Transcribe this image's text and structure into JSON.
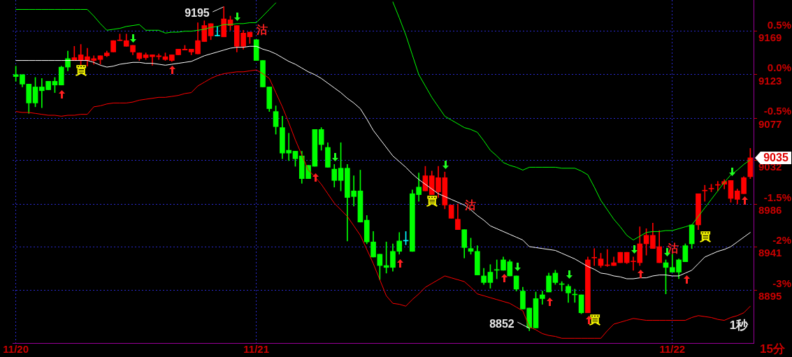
{
  "chart_data": {
    "type": "candlestick",
    "grid": true,
    "legend": false,
    "categories": [
      "11/20",
      null,
      null,
      null,
      null,
      null,
      null,
      null,
      null,
      null,
      null,
      null,
      null,
      null,
      null,
      null,
      null,
      null,
      null,
      null,
      null,
      null,
      null,
      null,
      null,
      null,
      null,
      null,
      null,
      null,
      null,
      null,
      null,
      null,
      null,
      null,
      null,
      "11/21",
      null,
      null,
      null,
      null,
      null,
      null,
      null,
      null,
      null,
      null,
      null,
      null,
      null,
      null,
      null,
      null,
      null,
      null,
      null,
      null,
      null,
      null,
      null,
      null,
      null,
      null,
      null,
      null,
      null,
      null,
      null,
      null,
      null,
      null,
      null,
      null,
      null,
      null,
      null,
      null,
      null,
      null,
      null,
      null,
      null,
      null,
      null,
      null,
      null,
      null,
      null,
      null,
      null,
      null,
      null,
      null,
      null,
      null,
      null,
      null,
      null,
      null,
      null,
      "11/22",
      null,
      null,
      null,
      null,
      null,
      null,
      null,
      null,
      null,
      null,
      null,
      null
    ],
    "ylim": [
      8839,
      9202
    ],
    "yticks": [
      8895,
      8941,
      8986,
      9032,
      9077,
      9123,
      9169
    ],
    "y2lim": [
      -3.11,
      0.87
    ],
    "y2ticks": [
      {
        "value": -2.5,
        "label": "-3%"
      },
      {
        "value": -2,
        "label": "-2%"
      },
      {
        "value": -1.5,
        "label": "-1.5%"
      },
      {
        "value": -0.5,
        "label": "-0.5%"
      },
      {
        "value": 0,
        "label": "0.0%"
      },
      {
        "value": 0.5,
        "label": "0.5%"
      }
    ],
    "annotations": [
      "9195",
      "8852",
      "買",
      "沽",
      "買",
      "沽",
      "買",
      "沽",
      "買",
      "1秒",
      "15分",
      "9035"
    ],
    "series": [
      {
        "type": "line",
        "color": "#00ff00",
        "values": [
          9192,
          9192,
          9192,
          9192,
          9192,
          9192,
          9192,
          9192,
          9192,
          9192,
          9192,
          9192,
          9185,
          9177,
          9170,
          9171,
          9172,
          9174,
          9175,
          9176,
          9170,
          9170,
          9170,
          9167,
          9168,
          9168,
          9169,
          9169,
          9170,
          9171,
          9173,
          9174,
          9176,
          9176,
          9177,
          9177,
          9178,
          9178,
          9185,
          9192,
          9199,
          null,
          null,
          null,
          null,
          null,
          null,
          null,
          null,
          null,
          null,
          null,
          null,
          null,
          null,
          null,
          null,
          null,
          9200,
          9183,
          9165,
          9144,
          9123,
          9111,
          9099,
          9089,
          9079,
          9075,
          9071,
          9067,
          9065,
          9062,
          9053,
          9043,
          9037,
          9030,
          9027,
          9025,
          9022,
          9025,
          9025,
          9025,
          9025,
          9025,
          9024,
          9024,
          9024,
          9021,
          9017,
          9004,
          8990,
          8980,
          8970,
          8962,
          8953,
          8948,
          8952,
          8956,
          8957,
          8957,
          8958,
          8958,
          8960,
          8962,
          8964,
          8973,
          8982,
          8991,
          9000,
          9009,
          9017,
          9022,
          9028,
          9033
        ]
      },
      {
        "type": "line",
        "color": "#ffffff",
        "values": [
          9138,
          9138,
          9138,
          9138,
          9138,
          9138,
          9138,
          9138,
          9138,
          9138,
          9138,
          9138,
          9136,
          9133,
          9131,
          9132,
          9134,
          9135,
          9136,
          9136,
          9135,
          9135,
          9134,
          9133,
          9134,
          9135,
          9136,
          9137,
          9140,
          9143,
          9145,
          9147,
          9149,
          9151,
          9152,
          9152,
          9153,
          9153,
          9150,
          9148,
          9145,
          9141,
          9137,
          9134,
          9130,
          9126,
          9123,
          9119,
          9114,
          9109,
          9104,
          9098,
          9093,
          9087,
          9076,
          9064,
          9055,
          9046,
          9037,
          9031,
          9025,
          9018,
          9012,
          9007,
          9002,
          8997,
          8994,
          8991,
          8988,
          8985,
          8980,
          8974,
          8969,
          8963,
          8960,
          8957,
          8954,
          8951,
          8948,
          8941,
          8940,
          8939,
          8938,
          8937,
          8934,
          8931,
          8928,
          8924,
          8920,
          8917,
          8913,
          8912,
          8910,
          8909,
          8907,
          8907,
          8908,
          8908,
          8910,
          8911,
          8911,
          8910,
          8910,
          8913,
          8916,
          8923,
          8930,
          8933,
          8936,
          8938,
          8941,
          8946,
          8951,
          8956
        ]
      },
      {
        "type": "line",
        "color": "#ff0000",
        "values": [
          9084,
          9083,
          9083,
          9082,
          9081,
          9080,
          9080,
          9079,
          9080,
          9080,
          9081,
          9081,
          9089,
          9090,
          9092,
          9093,
          9093,
          9093,
          9094,
          9096,
          9097,
          9098,
          9099,
          9099,
          9100,
          9101,
          9103,
          9104,
          9111,
          9115,
          9119,
          9122,
          9124,
          9125,
          9126,
          9126,
          9127,
          9128,
          9124,
          9119,
          9104,
          9089,
          9072,
          9054,
          9038,
          9022,
          9015,
          9007,
          8997,
          8987,
          8980,
          8973,
          8963,
          8953,
          8938,
          8923,
          8906,
          8889,
          8881,
          8880,
          8878,
          8885,
          8891,
          8898,
          8902,
          8906,
          8910,
          8908,
          8906,
          8904,
          8898,
          8891,
          8889,
          8887,
          8885,
          8883,
          8881,
          8877,
          8873,
          8856,
          8853,
          8849,
          8847,
          8846,
          8844,
          8844,
          8844,
          8844,
          8844,
          8844,
          8844,
          8852,
          8859,
          8861,
          8863,
          8865,
          8864,
          8863,
          8863,
          8863,
          8863,
          8863,
          8863,
          8863,
          8866,
          8868,
          8867,
          8866,
          8864,
          8863,
          8866,
          8868,
          8871,
          8878
        ]
      },
      {
        "ohlc": [
          [
            9123,
            9132,
            9116,
            9121
          ],
          [
            9123,
            9123,
            9110,
            9113
          ],
          [
            9113,
            9113,
            9082,
            9093
          ],
          [
            9110,
            9120,
            9089,
            9093
          ],
          [
            9110,
            9119,
            9088,
            9106
          ],
          [
            9116,
            9116,
            9107,
            9107
          ],
          [
            9116,
            9120,
            9104,
            9112
          ],
          [
            9131,
            9132,
            9112,
            9112
          ],
          [
            9140,
            9148,
            9127,
            9131
          ],
          [
            9138,
            9153,
            9138,
            9141
          ],
          [
            9138,
            9155,
            9133,
            9144
          ],
          [
            9138,
            9151,
            9132,
            9142
          ],
          [
            9138,
            9143,
            9134,
            9140
          ],
          [
            9139,
            9143,
            9134,
            9143
          ],
          [
            9143,
            9148,
            9142,
            9146
          ],
          [
            9147,
            9159,
            9147,
            9159
          ],
          [
            9159,
            9166,
            9159,
            9159
          ],
          [
            9153,
            9166,
            9153,
            9159
          ],
          [
            9147,
            9154,
            9144,
            9154
          ],
          [
            9140,
            9146,
            9138,
            9146
          ],
          [
            9141,
            9146,
            9139,
            9144
          ],
          [
            9142,
            9144,
            9133,
            9144
          ],
          [
            9142,
            9145,
            9139,
            9143
          ],
          [
            9139,
            9146,
            9138,
            9142
          ],
          [
            9138,
            9144,
            9137,
            9144
          ],
          [
            9144,
            9150,
            9144,
            9150
          ],
          [
            9149,
            9154,
            9149,
            9150
          ],
          [
            9147,
            9150,
            9144,
            9150
          ],
          [
            9145,
            9178,
            9145,
            9159
          ],
          [
            9158,
            9180,
            9158,
            9175
          ],
          [
            9164,
            9177,
            9160,
            9177
          ],
          [
            9164,
            9174,
            9164,
            9164
          ],
          [
            9163,
            9195,
            9163,
            9182
          ],
          [
            9175,
            9185,
            9170,
            9181
          ],
          [
            9153,
            9175,
            9147,
            9175
          ],
          [
            9153,
            9170,
            9150,
            9167
          ],
          [
            9163,
            9168,
            9156,
            9168
          ],
          [
            9160,
            9160,
            9138,
            9138
          ],
          [
            9138,
            9138,
            9110,
            9110
          ],
          [
            9110,
            9110,
            9084,
            9087
          ],
          [
            9084,
            9090,
            9060,
            9068
          ],
          [
            9067,
            9079,
            9034,
            9040
          ],
          [
            9043,
            9061,
            9032,
            9040
          ],
          [
            9042,
            9042,
            9026,
            9034
          ],
          [
            9037,
            9042,
            9008,
            9013
          ],
          [
            9027,
            9027,
            9013,
            9013
          ],
          [
            9065,
            9065,
            9026,
            9026
          ],
          [
            9065,
            9067,
            9043,
            9049
          ],
          [
            9046,
            9051,
            9025,
            9025
          ],
          [
            9023,
            9028,
            9004,
            9011
          ],
          [
            9024,
            9051,
            9000,
            9011
          ],
          [
            9024,
            9028,
            8947,
            8993
          ],
          [
            9000,
            9016,
            8984,
            8994
          ],
          [
            9000,
            9022,
            8967,
            8967
          ],
          [
            8969,
            8974,
            8944,
            8946
          ],
          [
            8946,
            8957,
            8930,
            8930
          ],
          [
            8933,
            8933,
            8906,
            8921
          ],
          [
            8921,
            8946,
            8913,
            8919
          ],
          [
            8936,
            8944,
            8915,
            8919
          ],
          [
            8947,
            8956,
            8933,
            8936
          ],
          [
            8947,
            8957,
            8943,
            8947
          ],
          [
            8997,
            9001,
            8936,
            8936
          ],
          [
            9004,
            9019,
            8989,
            8996
          ],
          [
            9000,
            9026,
            9000,
            9016
          ],
          [
            8996,
            9021,
            8996,
            9016
          ],
          [
            8999,
            9026,
            8993,
            9014
          ],
          [
            8985,
            9020,
            8981,
            9014
          ],
          [
            8971,
            8985,
            8971,
            8985
          ],
          [
            8959,
            8986,
            8959,
            8970
          ],
          [
            8959,
            8959,
            8929,
            8940
          ],
          [
            8939,
            8950,
            8933,
            8936
          ],
          [
            8936,
            8942,
            8911,
            8911
          ],
          [
            8910,
            8918,
            8901,
            8903
          ],
          [
            8914,
            8922,
            8897,
            8903
          ],
          [
            8916,
            8927,
            8907,
            8916
          ],
          [
            8927,
            8930,
            8916,
            8916
          ],
          [
            8925,
            8927,
            8910,
            8910
          ],
          [
            8910,
            8910,
            8894,
            8896
          ],
          [
            8894,
            8898,
            8875,
            8875
          ],
          [
            8876,
            8876,
            8852,
            8855
          ],
          [
            8886,
            8893,
            8855,
            8855
          ],
          [
            8890,
            8894,
            8880,
            8886
          ],
          [
            8910,
            8913,
            8893,
            8893
          ],
          [
            8913,
            8916,
            8901,
            8903
          ],
          [
            8901,
            8904,
            8894,
            8901
          ],
          [
            8899,
            8901,
            8882,
            8892
          ],
          [
            8890,
            8896,
            8882,
            8890
          ],
          [
            8890,
            8890,
            8870,
            8871
          ],
          [
            8871,
            8930,
            8871,
            8927
          ],
          [
            8929,
            8939,
            8921,
            8929
          ],
          [
            8921,
            8934,
            8919,
            8928
          ],
          [
            8921,
            8938,
            8920,
            8921
          ],
          [
            8921,
            8930,
            8921,
            8924
          ],
          [
            8924,
            8935,
            8924,
            8935
          ],
          [
            8924,
            8935,
            8923,
            8935
          ],
          [
            8925,
            8930,
            8916,
            8925
          ],
          [
            8924,
            8962,
            8921,
            8944
          ],
          [
            8944,
            8960,
            8932,
            8953
          ],
          [
            8939,
            8966,
            8939,
            8953
          ],
          [
            8924,
            8958,
            8924,
            8941
          ],
          [
            8924,
            8927,
            8891,
            8919
          ],
          [
            8919,
            8933,
            8914,
            8914
          ],
          [
            8927,
            8928,
            8907,
            8914
          ],
          [
            8942,
            8944,
            8925,
            8925
          ],
          [
            8964,
            8964,
            8939,
            8944
          ],
          [
            8964,
            8997,
            8959,
            8997
          ],
          [
            9000,
            9006,
            8989,
            9000
          ],
          [
            9002,
            9007,
            8999,
            9002
          ],
          [
            9006,
            9010,
            9000,
            9006
          ],
          [
            9007,
            9012,
            9002,
            9010
          ],
          [
            8992,
            9011,
            8988,
            9011
          ],
          [
            8991,
            9002,
            8986,
            9000
          ],
          [
            8997,
            9015,
            8997,
            9014
          ],
          [
            9015,
            9045,
            9013,
            9035
          ]
        ],
        "colors": [
          "#00ff00",
          "#00ff00",
          "#00ff00",
          "#00ff00",
          "#00ff00",
          "#00ff00",
          "#00ff00",
          "#00ff00",
          "#00ff00",
          "#ff0000",
          "#ff0000",
          "#ff0000",
          "#ff0000",
          "#ff0000",
          "#ff0000",
          "#ff0000",
          "#ff0000",
          "#ff0000",
          "#ff0000",
          "#ff0000",
          "#ff0000",
          "#ff0000",
          "#ff0000",
          "#ff0000",
          "#ff0000",
          "#ff0000",
          "#ff0000",
          "#ff0000",
          "#ff0000",
          "#ff0000",
          "#ff0000",
          "#00ffff",
          "#ff0000",
          "#ff0000",
          "#ff0000",
          "#ff0000",
          "#ff0000",
          "#00ff00",
          "#00ff00",
          "#00ff00",
          "#00ff00",
          "#00ff00",
          "#00ff00",
          "#00ff00",
          "#00ff00",
          "#00ff00",
          "#00ff00",
          "#00ff00",
          "#00ff00",
          "#00ff00",
          "#00ff00",
          "#00ff00",
          "#00ff00",
          "#00ff00",
          "#00ff00",
          "#00ff00",
          "#00ff00",
          "#00ff00",
          "#00ff00",
          "#00ff00",
          "#00ffff",
          "#00ff00",
          "#00ff00",
          "#ff0000",
          "#ff0000",
          "#ff0000",
          "#ff0000",
          "#ff0000",
          "#ff0000",
          "#00ff00",
          "#00ff00",
          "#00ff00",
          "#00ff00",
          "#00ff00",
          "#00ff00",
          "#00ff00",
          "#00ff00",
          "#00ff00",
          "#00ff00",
          "#00ff00",
          "#00ff00",
          "#00ff00",
          "#00ff00",
          "#00ff00",
          "#00ff00",
          "#00ff00",
          "#00ff00",
          "#00ff00",
          "#ff0000",
          "#ff0000",
          "#ff0000",
          "#ff0000",
          "#ff0000",
          "#ff0000",
          "#ff0000",
          "#ff0000",
          "#ff0000",
          "#ff0000",
          "#ff0000",
          "#ff0000",
          "#00ff00",
          "#00ff00",
          "#00ff00",
          "#00ff00",
          "#00ff00",
          "#ff0000",
          "#ff0000",
          "#ff0000",
          "#ff0000",
          "#ff0000",
          "#ff0000",
          "#ff0000",
          "#ff0000",
          "#ff0000"
        ]
      }
    ]
  }
}
